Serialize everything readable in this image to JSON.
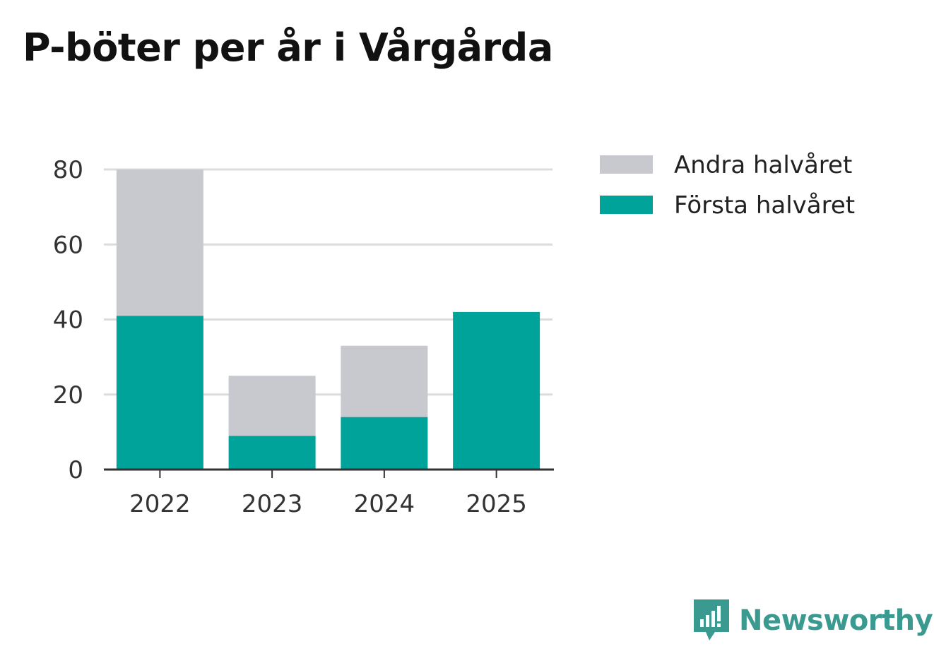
{
  "title": "P-böter per år i Vårgårda",
  "chart_data": {
    "type": "bar",
    "stacked": true,
    "categories": [
      "2022",
      "2023",
      "2024",
      "2025"
    ],
    "series": [
      {
        "name": "Första halvåret",
        "values": [
          41,
          9,
          14,
          42
        ],
        "color": "#00a39a"
      },
      {
        "name": "Andra halvåret",
        "values": [
          39,
          16,
          19,
          0
        ],
        "color": "#c8c8cf"
      }
    ],
    "legend_order": [
      "Andra halvåret",
      "Första halvåret"
    ],
    "yticks": [
      0,
      20,
      40,
      60,
      80
    ],
    "ylim": [
      0,
      80
    ],
    "xlabel": "",
    "ylabel": "",
    "grid": true,
    "legend_position": "right"
  },
  "brand": {
    "name": "Newsworthy",
    "color": "#3a9a90",
    "icon": "newsworthy-logo-icon"
  }
}
